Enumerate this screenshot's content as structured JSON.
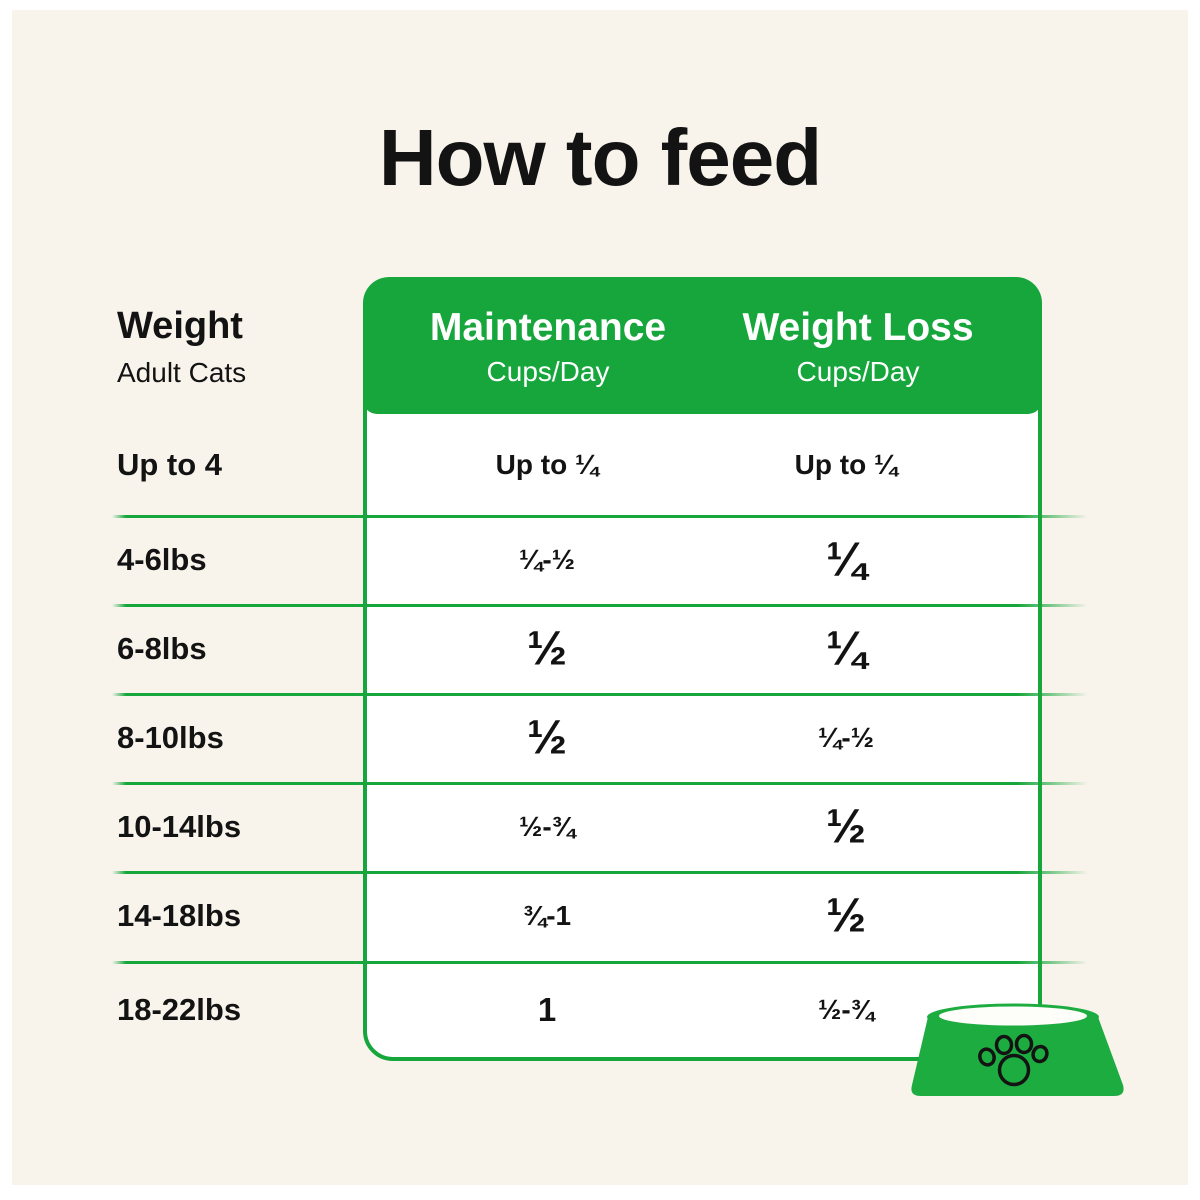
{
  "page": {
    "title": "How to feed"
  },
  "colors": {
    "green": "#17A63C",
    "bowl_green": "#1DAC40",
    "cream_background": "#F8F4EC",
    "text": "#131313",
    "header_text": "#FFFFFF",
    "table_background": "#FFFFFF"
  },
  "table": {
    "weight_header": {
      "title": "Weight",
      "subtitle": "Adult Cats"
    },
    "columns": [
      {
        "label": "Maintenance",
        "sublabel": "Cups/Day"
      },
      {
        "label": "Weight Loss",
        "sublabel": "Cups/Day"
      }
    ],
    "rows": [
      {
        "weight": "Up to 4",
        "maintenance": "Up to ¼",
        "maintenance_size": "sm",
        "weight_loss": "Up to ¼",
        "weight_loss_size": "sm"
      },
      {
        "weight": "4-6lbs",
        "maintenance": "¼-½",
        "maintenance_size": "sm",
        "weight_loss": "¼",
        "weight_loss_size": "lg"
      },
      {
        "weight": "6-8lbs",
        "maintenance": "½",
        "maintenance_size": "lg",
        "weight_loss": "¼",
        "weight_loss_size": "lg"
      },
      {
        "weight": "8-10lbs",
        "maintenance": "½",
        "maintenance_size": "lg",
        "weight_loss": "¼-½",
        "weight_loss_size": "sm"
      },
      {
        "weight": "10-14lbs",
        "maintenance": "½-¾",
        "maintenance_size": "sm",
        "weight_loss": "½",
        "weight_loss_size": "lg"
      },
      {
        "weight": "14-18lbs",
        "maintenance": "¾-1",
        "maintenance_size": "sm",
        "weight_loss": "½",
        "weight_loss_size": "lg"
      },
      {
        "weight": "18-22lbs",
        "maintenance": "1",
        "maintenance_size": "md",
        "weight_loss": "½-¾",
        "weight_loss_size": "sm"
      }
    ]
  },
  "icons": {
    "bowl": "pet-bowl-paw-icon"
  },
  "chart_data": {
    "type": "table",
    "title": "How to feed",
    "columns": [
      "Weight (Adult Cats)",
      "Maintenance Cups/Day",
      "Weight Loss Cups/Day"
    ],
    "rows": [
      [
        "Up to 4",
        "Up to ¼",
        "Up to ¼"
      ],
      [
        "4-6lbs",
        "¼-½",
        "¼"
      ],
      [
        "6-8lbs",
        "½",
        "¼"
      ],
      [
        "8-10lbs",
        "½",
        "¼-½"
      ],
      [
        "10-14lbs",
        "½-¾",
        "½"
      ],
      [
        "14-18lbs",
        "¾-1",
        "½"
      ],
      [
        "18-22lbs",
        "1",
        "½-¾"
      ]
    ]
  }
}
